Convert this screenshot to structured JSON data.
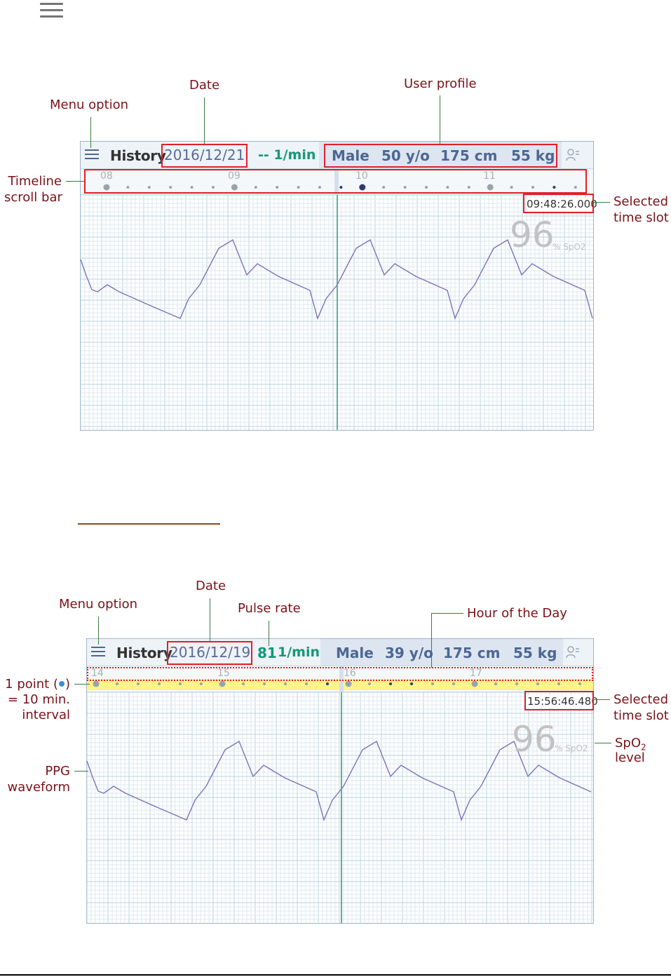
{
  "top_icon": "hamburger-menu-icon",
  "colors": {
    "annotation_text": "#7a1218",
    "annotation_line": "#3d7a3d",
    "highlight_box": "#e02028",
    "waveform": "#7c73b8",
    "cursor_line": "#2a9a7a",
    "grid": "#c6dbe6",
    "spo2_text": "#c2c2c2",
    "timeline_highlight": "#fff48a"
  },
  "panel1": {
    "header": {
      "title": "History",
      "date": "2016/12/21",
      "pulse": "-- 1/min",
      "sex": "Male",
      "age": "50 y/o",
      "height": "175 cm",
      "weight": "55 kg",
      "profile_icon": "user-settings-icon"
    },
    "timeline": {
      "hours": [
        "08",
        "09",
        "10",
        "11"
      ]
    },
    "selected_time": "09:48:26.000",
    "spo2_value": "96",
    "spo2_label": "% SpO2"
  },
  "panel2": {
    "header": {
      "title": "History",
      "date": "2016/12/19",
      "pulse_value": "81",
      "pulse_unit": "1/min",
      "sex": "Male",
      "age": "39 y/o",
      "height": "175 cm",
      "weight": "55 kg",
      "profile_icon": "user-settings-icon"
    },
    "timeline": {
      "hours": [
        "14",
        "15",
        "16",
        "17"
      ]
    },
    "selected_time": "15:56:46.480",
    "spo2_value": "96",
    "spo2_label": "% SpO2"
  },
  "annotations1": {
    "date": "Date",
    "user_profile": "User profile",
    "menu_option": "Menu option",
    "timeline_1": "Timeline",
    "timeline_2": "scroll bar",
    "selected_1": "Selected",
    "selected_2": "time slot"
  },
  "annotations2": {
    "date": "Date",
    "menu_option": "Menu option",
    "pulse_rate": "Pulse rate",
    "hour_of_day": "Hour of the Day",
    "point_1a": "1 point (",
    "point_1b": ")",
    "point_2": "= 10 min.",
    "point_3": "interval",
    "selected_1": "Selected",
    "selected_2": "time slot",
    "spo2_1": "SpO",
    "spo2_sub": "2",
    "spo2_2": "level",
    "ppg_1": "PPG",
    "ppg_2": "waveform"
  }
}
